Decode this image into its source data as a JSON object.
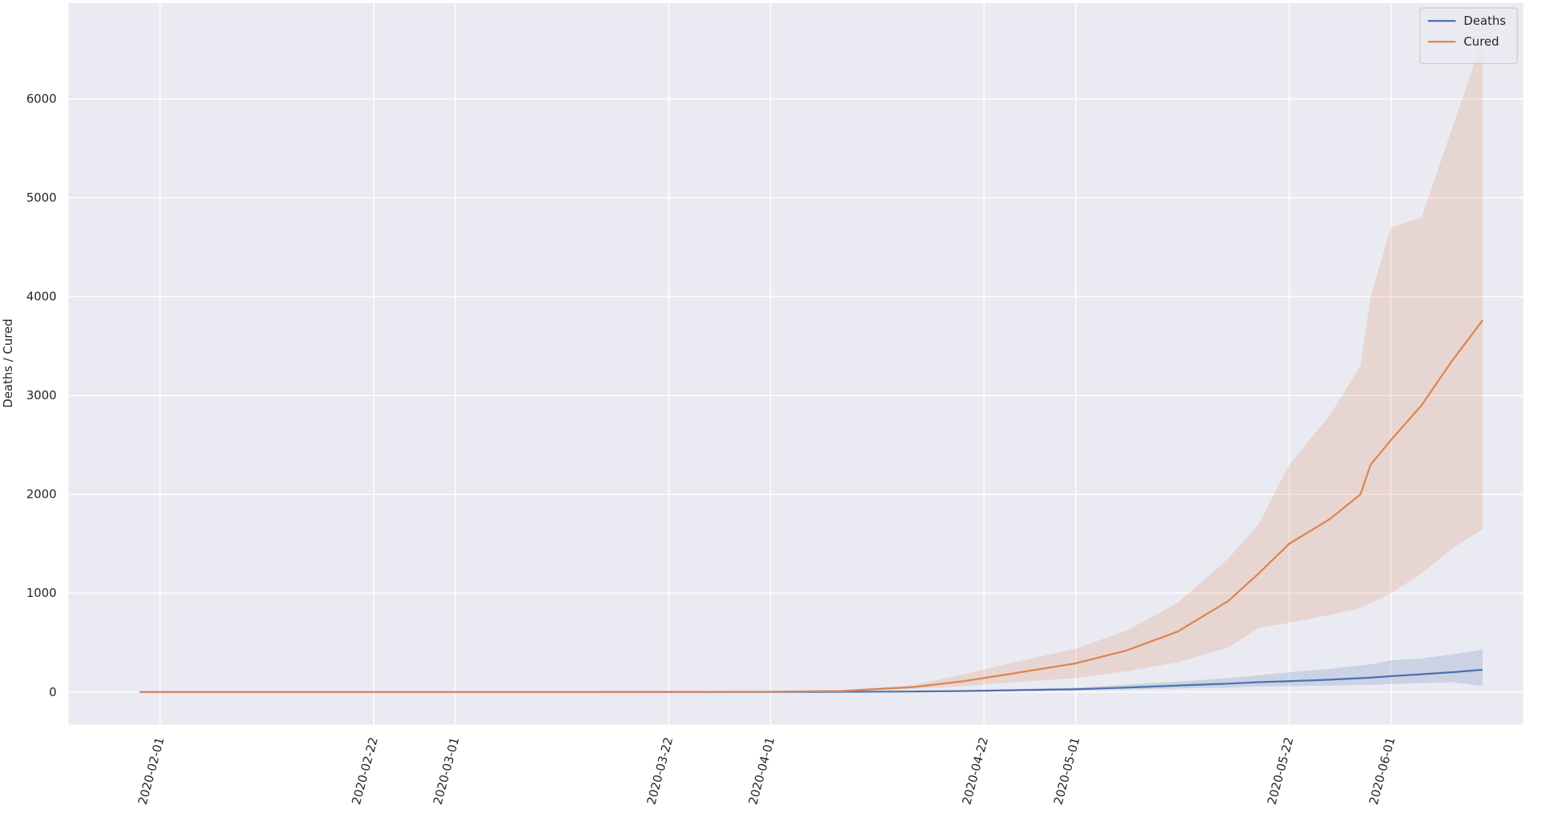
{
  "chart_data": {
    "type": "line",
    "ylabel": "Deaths / Cured",
    "x": [
      "2020-01-30",
      "2020-02-15",
      "2020-03-01",
      "2020-03-15",
      "2020-04-01",
      "2020-04-08",
      "2020-04-15",
      "2020-04-20",
      "2020-04-25",
      "2020-05-01",
      "2020-05-06",
      "2020-05-11",
      "2020-05-16",
      "2020-05-19",
      "2020-05-22",
      "2020-05-26",
      "2020-05-29",
      "2020-05-30",
      "2020-06-01",
      "2020-06-04",
      "2020-06-07",
      "2020-06-10"
    ],
    "series": [
      {
        "name": "Deaths",
        "color": "#4c72b0",
        "values": [
          0,
          0,
          0,
          0,
          1,
          2,
          5,
          10,
          18,
          28,
          45,
          65,
          85,
          100,
          110,
          125,
          140,
          145,
          160,
          180,
          200,
          225
        ],
        "lower": [
          0,
          0,
          0,
          0,
          0,
          1,
          2,
          5,
          9,
          15,
          25,
          35,
          45,
          55,
          60,
          65,
          70,
          72,
          80,
          90,
          100,
          60
        ],
        "upper": [
          0,
          0,
          0,
          0,
          2,
          4,
          9,
          20,
          30,
          45,
          75,
          105,
          140,
          170,
          200,
          235,
          270,
          280,
          320,
          340,
          380,
          430
        ]
      },
      {
        "name": "Cured",
        "color": "#dd8452",
        "values": [
          0,
          0,
          0,
          0,
          3,
          10,
          50,
          110,
          190,
          290,
          420,
          610,
          920,
          1200,
          1500,
          1750,
          2000,
          2300,
          2550,
          2900,
          3350,
          3760
        ],
        "lower": [
          0,
          0,
          0,
          0,
          1,
          5,
          30,
          60,
          100,
          140,
          210,
          300,
          450,
          650,
          700,
          780,
          850,
          900,
          1000,
          1200,
          1450,
          1650
        ],
        "upper": [
          0,
          0,
          0,
          0,
          6,
          20,
          70,
          180,
          300,
          440,
          620,
          900,
          1350,
          1700,
          2300,
          2800,
          3300,
          4000,
          4700,
          4800,
          5700,
          6600
        ]
      }
    ],
    "xlim": [
      "2020-01-23",
      "2020-06-14"
    ],
    "xticks": [
      "2020-02-01",
      "2020-02-22",
      "2020-03-01",
      "2020-03-22",
      "2020-04-01",
      "2020-04-22",
      "2020-05-01",
      "2020-05-22",
      "2020-06-01"
    ],
    "ylim": [
      -330,
      6970
    ],
    "yticks": [
      0,
      1000,
      2000,
      3000,
      4000,
      5000,
      6000
    ],
    "grid": true,
    "legend": "upper right"
  }
}
